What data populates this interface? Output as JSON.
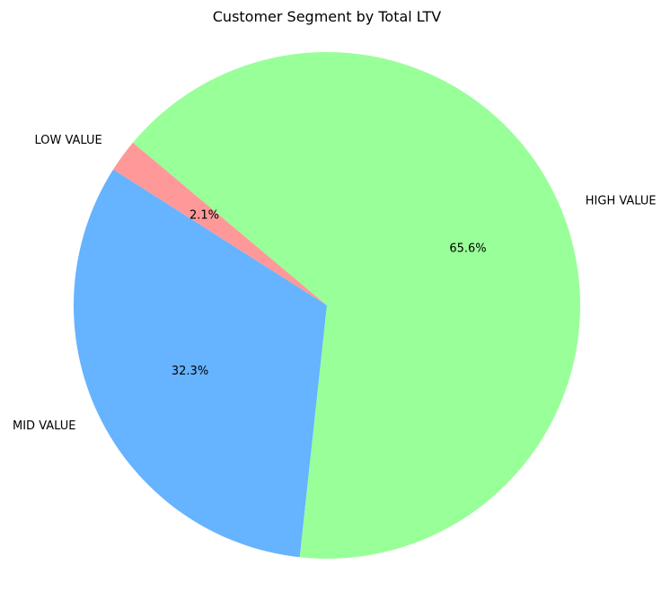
{
  "chart_data": {
    "type": "pie",
    "title": "Customer Segment by Total LTV",
    "start_angle_deg": 140,
    "direction": "counterclockwise",
    "slices": [
      {
        "label": "LOW VALUE",
        "value": 2.1,
        "pct_label": "2.1%",
        "color": "#ff9999"
      },
      {
        "label": "MID VALUE",
        "value": 32.3,
        "pct_label": "32.3%",
        "color": "#66b3ff"
      },
      {
        "label": "HIGH VALUE",
        "value": 65.6,
        "pct_label": "65.6%",
        "color": "#99ff99"
      }
    ]
  }
}
